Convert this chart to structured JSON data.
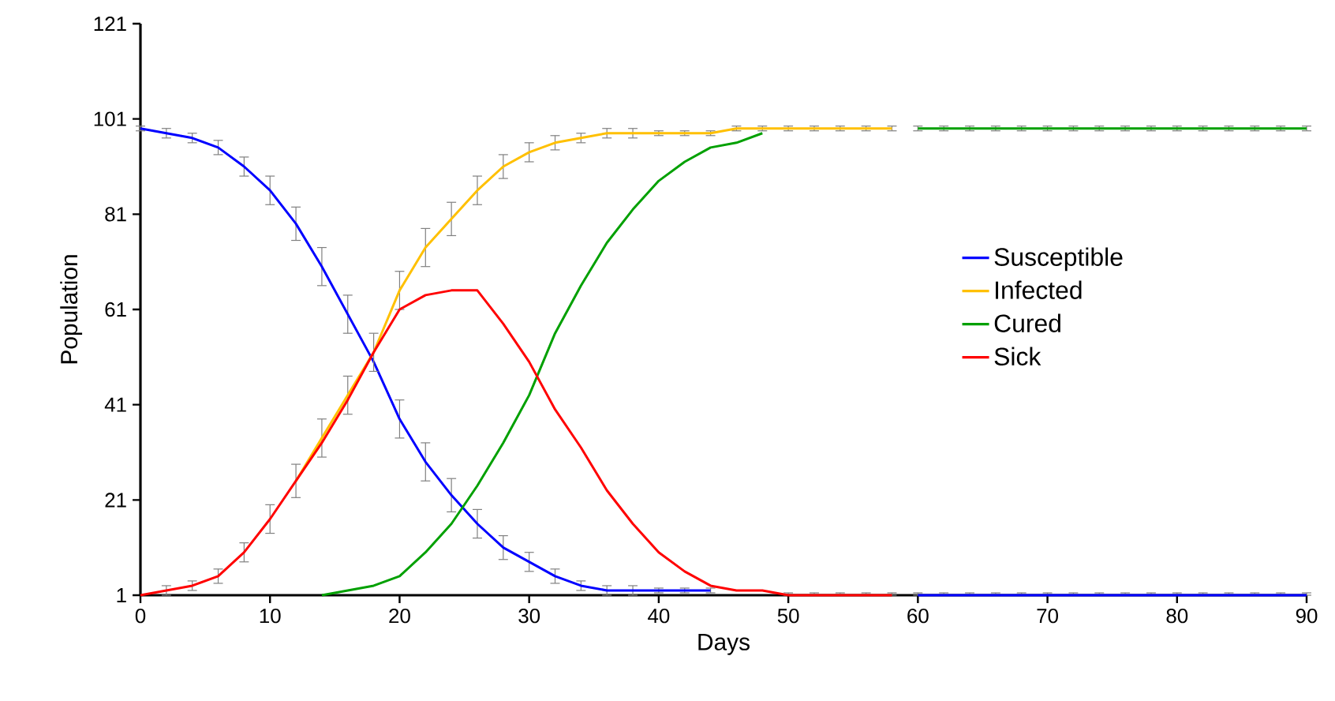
{
  "chart_data": {
    "type": "line",
    "xlabel": "Days",
    "ylabel": "Population",
    "x": [
      0,
      2,
      4,
      6,
      8,
      10,
      12,
      14,
      16,
      18,
      20,
      22,
      24,
      26,
      28,
      30,
      32,
      34,
      36,
      38,
      40,
      42,
      44,
      46,
      48,
      50,
      52,
      54,
      56,
      58,
      60,
      62,
      64,
      66,
      68,
      70,
      72,
      74,
      76,
      78,
      80,
      82,
      84,
      86,
      88,
      90
    ],
    "series": [
      {
        "name": "Susceptible",
        "color": "#0000ff",
        "values": [
          99,
          98,
          97,
          95,
          91,
          86,
          79,
          70,
          60,
          50,
          38,
          29,
          22,
          16,
          11,
          8,
          5,
          3,
          2,
          2,
          2,
          2,
          2,
          null,
          null,
          null,
          null,
          null,
          null,
          null,
          1,
          1,
          1,
          1,
          1,
          1,
          1,
          1,
          1,
          1,
          1,
          1,
          1,
          1,
          1,
          1
        ],
        "errors": [
          0.5,
          1,
          1,
          1.5,
          2,
          3,
          3.5,
          4,
          4,
          null,
          4,
          4,
          3.5,
          3,
          2.5,
          2,
          1.5,
          1,
          1,
          1,
          0.5,
          0.5,
          0.5,
          null,
          null,
          null,
          null,
          null,
          null,
          null,
          [
            1,
            1.5
          ],
          [
            1,
            1.5
          ],
          [
            1,
            1.5
          ],
          [
            1,
            1.5
          ],
          [
            1,
            1.5
          ],
          [
            1,
            1.5
          ],
          [
            1,
            1.5
          ],
          [
            1,
            1.5
          ],
          [
            1,
            1.5
          ],
          [
            1,
            1.5
          ],
          [
            1,
            1.5
          ],
          [
            1,
            1.5
          ],
          [
            1,
            1.5
          ],
          [
            1,
            1.5
          ],
          [
            1,
            1.5
          ],
          [
            1,
            1.5
          ]
        ]
      },
      {
        "name": "Infected",
        "color": "#ffc000",
        "values": [
          null,
          null,
          null,
          null,
          null,
          null,
          25,
          34,
          43,
          52,
          65,
          74,
          80,
          86,
          91,
          94,
          96,
          97,
          98,
          98,
          98,
          98,
          98,
          99,
          99,
          99,
          99,
          99,
          99,
          99,
          null,
          null,
          null,
          null,
          null,
          null,
          null,
          null,
          null,
          null,
          null,
          null,
          null,
          null,
          null,
          null
        ],
        "errors": [
          null,
          null,
          null,
          null,
          null,
          null,
          3.5,
          4,
          4,
          4,
          4,
          4,
          3.5,
          3,
          2.5,
          2,
          1.5,
          1,
          1,
          1,
          0.5,
          0.5,
          0.5,
          0.5,
          0.5,
          0.5,
          0.5,
          0.5,
          0.5,
          0.5,
          null,
          null,
          null,
          null,
          null,
          null,
          null,
          null,
          null,
          null,
          null,
          null,
          null,
          null,
          null,
          null
        ]
      },
      {
        "name": "Cured",
        "color": "#00a000",
        "values": [
          null,
          null,
          null,
          null,
          null,
          null,
          null,
          1,
          2,
          3,
          5,
          10,
          16,
          24,
          33,
          43,
          56,
          66,
          75,
          82,
          88,
          92,
          95,
          96,
          98,
          null,
          null,
          null,
          null,
          null,
          99,
          99,
          99,
          99,
          99,
          99,
          99,
          99,
          99,
          99,
          99,
          99,
          99,
          99,
          99,
          99
        ],
        "errors": [
          null,
          null,
          null,
          null,
          null,
          null,
          null,
          null,
          null,
          null,
          null,
          null,
          null,
          null,
          null,
          null,
          null,
          null,
          null,
          null,
          null,
          null,
          null,
          null,
          null,
          null,
          null,
          null,
          null,
          null,
          0.5,
          0.5,
          0.5,
          0.5,
          0.5,
          0.5,
          0.5,
          0.5,
          0.5,
          0.5,
          0.5,
          0.5,
          0.5,
          0.5,
          0.5,
          0.5
        ]
      },
      {
        "name": "Sick",
        "color": "#ff0000",
        "values": [
          1,
          2,
          3,
          5,
          10,
          17,
          25,
          33,
          42,
          52,
          61,
          64,
          65,
          65,
          58,
          50,
          40,
          32,
          23,
          16,
          10,
          6,
          3,
          2,
          2,
          1,
          1,
          1,
          1,
          1,
          null,
          null,
          null,
          null,
          null,
          null,
          null,
          null,
          null,
          null,
          null,
          null,
          null,
          null,
          null,
          null
        ],
        "errors": [
          null,
          1,
          1,
          1.5,
          2,
          3,
          null,
          null,
          null,
          null,
          null,
          null,
          null,
          null,
          null,
          null,
          null,
          null,
          null,
          null,
          null,
          null,
          null,
          null,
          null,
          [
            1,
            1.5
          ],
          [
            1,
            1.5
          ],
          [
            1,
            1.5
          ],
          [
            1,
            1.5
          ],
          [
            1,
            1.5
          ],
          null,
          null,
          null,
          null,
          null,
          null,
          null,
          null,
          null,
          null,
          null,
          null,
          null,
          null,
          null,
          null
        ]
      }
    ],
    "xlim": [
      0,
      90
    ],
    "xticks": [
      0,
      10,
      20,
      30,
      40,
      50,
      60,
      70,
      80,
      90
    ],
    "ylim": [
      1,
      121
    ],
    "yticks": [
      1,
      21,
      41,
      61,
      81,
      101,
      121
    ],
    "grid": false,
    "legend": "right",
    "marker": "none",
    "line_style": "solid"
  }
}
